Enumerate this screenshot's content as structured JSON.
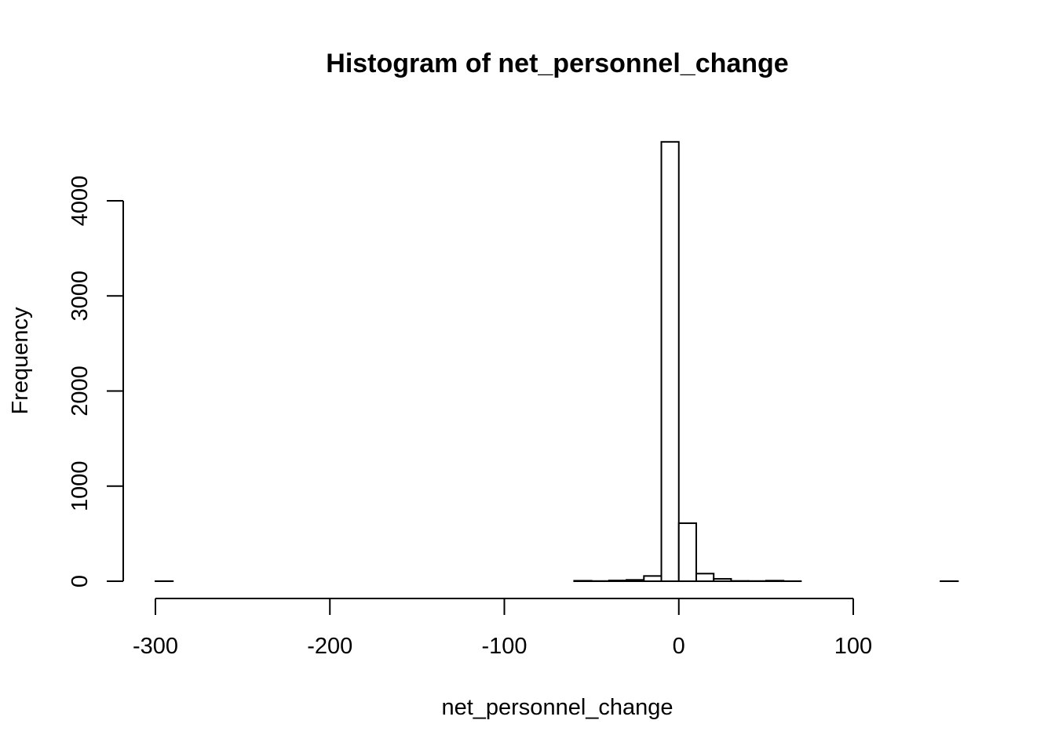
{
  "chart_data": {
    "type": "bar",
    "title": "Histogram of net_personnel_change",
    "xlabel": "net_personnel_change",
    "ylabel": "Frequency",
    "xlim": [
      -300,
      160
    ],
    "ylim": [
      0,
      4630
    ],
    "x_ticks": [
      -300,
      -200,
      -100,
      0,
      100
    ],
    "y_ticks": [
      0,
      1000,
      2000,
      3000,
      4000
    ],
    "bin_width": 10,
    "bins": [
      {
        "start": -300,
        "end": -290,
        "count": 1
      },
      {
        "start": -290,
        "end": -280,
        "count": 0
      },
      {
        "start": -280,
        "end": -270,
        "count": 0
      },
      {
        "start": -270,
        "end": -260,
        "count": 0
      },
      {
        "start": -260,
        "end": -250,
        "count": 0
      },
      {
        "start": -250,
        "end": -240,
        "count": 0
      },
      {
        "start": -240,
        "end": -230,
        "count": 0
      },
      {
        "start": -230,
        "end": -220,
        "count": 0
      },
      {
        "start": -220,
        "end": -210,
        "count": 0
      },
      {
        "start": -210,
        "end": -200,
        "count": 0
      },
      {
        "start": -200,
        "end": -190,
        "count": 0
      },
      {
        "start": -190,
        "end": -180,
        "count": 0
      },
      {
        "start": -180,
        "end": -170,
        "count": 0
      },
      {
        "start": -170,
        "end": -160,
        "count": 0
      },
      {
        "start": -160,
        "end": -150,
        "count": 0
      },
      {
        "start": -150,
        "end": -140,
        "count": 0
      },
      {
        "start": -140,
        "end": -130,
        "count": 0
      },
      {
        "start": -130,
        "end": -120,
        "count": 0
      },
      {
        "start": -120,
        "end": -110,
        "count": 0
      },
      {
        "start": -110,
        "end": -100,
        "count": 0
      },
      {
        "start": -100,
        "end": -90,
        "count": 0
      },
      {
        "start": -90,
        "end": -80,
        "count": 0
      },
      {
        "start": -80,
        "end": -70,
        "count": 0
      },
      {
        "start": -70,
        "end": -60,
        "count": 0
      },
      {
        "start": -60,
        "end": -50,
        "count": 5
      },
      {
        "start": -50,
        "end": -40,
        "count": 2
      },
      {
        "start": -40,
        "end": -30,
        "count": 8
      },
      {
        "start": -30,
        "end": -20,
        "count": 14
      },
      {
        "start": -20,
        "end": -10,
        "count": 55
      },
      {
        "start": -10,
        "end": 0,
        "count": 4620
      },
      {
        "start": 0,
        "end": 10,
        "count": 610
      },
      {
        "start": 10,
        "end": 20,
        "count": 80
      },
      {
        "start": 20,
        "end": 30,
        "count": 25
      },
      {
        "start": 30,
        "end": 40,
        "count": 3
      },
      {
        "start": 40,
        "end": 50,
        "count": 2
      },
      {
        "start": 50,
        "end": 60,
        "count": 6
      },
      {
        "start": 60,
        "end": 70,
        "count": 1
      },
      {
        "start": 70,
        "end": 80,
        "count": 0
      },
      {
        "start": 80,
        "end": 90,
        "count": 0
      },
      {
        "start": 90,
        "end": 100,
        "count": 0
      },
      {
        "start": 100,
        "end": 110,
        "count": 0
      },
      {
        "start": 110,
        "end": 120,
        "count": 0
      },
      {
        "start": 120,
        "end": 130,
        "count": 0
      },
      {
        "start": 130,
        "end": 140,
        "count": 0
      },
      {
        "start": 140,
        "end": 150,
        "count": 0
      },
      {
        "start": 150,
        "end": 160,
        "count": 1
      }
    ]
  }
}
